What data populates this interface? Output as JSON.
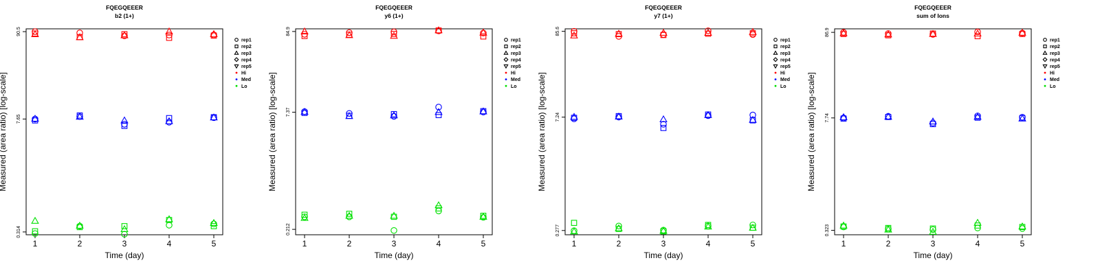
{
  "colors": {
    "Hi": "#ff0000",
    "Med": "#0000ff",
    "Lo": "#00e000"
  },
  "legend": {
    "placement": "right",
    "entries": [
      {
        "label": "rep1",
        "symbol": "circle"
      },
      {
        "label": "rep2",
        "symbol": "square"
      },
      {
        "label": "rep3",
        "symbol": "triangle-up"
      },
      {
        "label": "rep4",
        "symbol": "diamond"
      },
      {
        "label": "rep5",
        "symbol": "triangle-down"
      },
      {
        "label": "Hi",
        "symbol": "dot",
        "color": "#ff0000"
      },
      {
        "label": "Med",
        "symbol": "dot",
        "color": "#0000ff"
      },
      {
        "label": "Lo",
        "symbol": "dot",
        "color": "#00e000"
      }
    ]
  },
  "chart_data": [
    {
      "type": "scatter",
      "title": "FQEGQEEER",
      "subtitle": "b2 (1+)",
      "xlabel": "Time (day)",
      "ylabel": "Measured (area ratio) [log-scale]",
      "yscale": "log",
      "xlim": [
        0.8,
        5.2
      ],
      "ylim": [
        0.29,
        98
      ],
      "x_ticks": [
        1,
        2,
        3,
        4,
        5
      ],
      "y_ticks": [
        0.314,
        7.65,
        90.5
      ],
      "y_tick_labels": [
        "0.314",
        "7.65",
        "90.5"
      ],
      "points": {
        "Hi": [
          [
            1,
            90.5,
            "circle"
          ],
          [
            1,
            85.8,
            "square"
          ],
          [
            1,
            84.2,
            "triangle-up"
          ],
          [
            2,
            87.4,
            "circle"
          ],
          [
            2,
            77.6,
            "square"
          ],
          [
            2,
            77.3,
            "triangle-up"
          ],
          [
            3,
            80.3,
            "circle"
          ],
          [
            3,
            84.2,
            "square"
          ],
          [
            3,
            81.5,
            "triangle-up"
          ],
          [
            4,
            82.2,
            "circle"
          ],
          [
            4,
            76.0,
            "square"
          ],
          [
            4,
            91.0,
            "triangle-up"
          ],
          [
            5,
            82.6,
            "circle"
          ],
          [
            5,
            81.0,
            "square"
          ],
          [
            5,
            84.5,
            "triangle-up"
          ]
        ],
        "Med": [
          [
            1,
            7.65,
            "circle"
          ],
          [
            1,
            7.35,
            "square"
          ],
          [
            1,
            7.72,
            "triangle-up"
          ],
          [
            2,
            8.2,
            "circle"
          ],
          [
            2,
            8.45,
            "square"
          ],
          [
            2,
            8.15,
            "triangle-up"
          ],
          [
            3,
            6.6,
            "circle"
          ],
          [
            3,
            6.3,
            "square"
          ],
          [
            3,
            7.35,
            "triangle-up"
          ],
          [
            4,
            7.0,
            "circle"
          ],
          [
            4,
            7.85,
            "square"
          ],
          [
            4,
            7.2,
            "triangle-up"
          ],
          [
            5,
            7.95,
            "circle"
          ],
          [
            5,
            8.05,
            "square"
          ],
          [
            5,
            8.0,
            "triangle-up"
          ]
        ],
        "Lo": [
          [
            1,
            0.3,
            "circle"
          ],
          [
            1,
            0.32,
            "square"
          ],
          [
            1,
            0.43,
            "triangle-up"
          ],
          [
            2,
            0.37,
            "circle"
          ],
          [
            2,
            0.36,
            "square"
          ],
          [
            2,
            0.375,
            "triangle-up"
          ],
          [
            3,
            0.295,
            "circle"
          ],
          [
            3,
            0.37,
            "square"
          ],
          [
            3,
            0.34,
            "triangle-up"
          ],
          [
            4,
            0.38,
            "circle"
          ],
          [
            4,
            0.44,
            "square"
          ],
          [
            4,
            0.45,
            "triangle-up"
          ],
          [
            5,
            0.395,
            "circle"
          ],
          [
            5,
            0.37,
            "square"
          ],
          [
            5,
            0.405,
            "triangle-up"
          ]
        ]
      }
    },
    {
      "type": "scatter",
      "title": "FQEGQEEER",
      "subtitle": "y6 (1+)",
      "xlabel": "Time (day)",
      "ylabel": "Measured (area ratio) [log-scale]",
      "yscale": "log",
      "xlim": [
        0.8,
        5.2
      ],
      "ylim": [
        0.18,
        92
      ],
      "x_ticks": [
        1,
        2,
        3,
        4,
        5
      ],
      "y_ticks": [
        0.212,
        7.37,
        84.9
      ],
      "y_tick_labels": [
        "0.212",
        "7.37",
        "84.9"
      ],
      "points": {
        "Hi": [
          [
            1,
            78.0,
            "circle"
          ],
          [
            1,
            74.0,
            "square"
          ],
          [
            1,
            84.9,
            "triangle-up"
          ],
          [
            2,
            82.0,
            "circle"
          ],
          [
            2,
            77.0,
            "square"
          ],
          [
            2,
            76.0,
            "triangle-up"
          ],
          [
            3,
            84.0,
            "circle"
          ],
          [
            3,
            79.0,
            "square"
          ],
          [
            3,
            74.5,
            "triangle-up"
          ],
          [
            4,
            86.5,
            "circle"
          ],
          [
            4,
            87.5,
            "square"
          ],
          [
            4,
            88.0,
            "triangle-up"
          ],
          [
            5,
            81.0,
            "circle"
          ],
          [
            5,
            73.0,
            "square"
          ],
          [
            5,
            82.0,
            "triangle-up"
          ]
        ],
        "Med": [
          [
            1,
            7.5,
            "circle"
          ],
          [
            1,
            7.2,
            "square"
          ],
          [
            1,
            7.45,
            "triangle-up"
          ],
          [
            2,
            7.1,
            "circle"
          ],
          [
            2,
            6.6,
            "square"
          ],
          [
            2,
            6.55,
            "triangle-up"
          ],
          [
            3,
            6.5,
            "circle"
          ],
          [
            3,
            6.95,
            "square"
          ],
          [
            3,
            6.7,
            "triangle-up"
          ],
          [
            4,
            8.6,
            "circle"
          ],
          [
            4,
            6.75,
            "square"
          ],
          [
            4,
            7.4,
            "triangle-up"
          ],
          [
            5,
            7.4,
            "circle"
          ],
          [
            5,
            7.6,
            "square"
          ],
          [
            5,
            7.55,
            "triangle-up"
          ]
        ],
        "Lo": [
          [
            1,
            0.31,
            "circle"
          ],
          [
            1,
            0.33,
            "square"
          ],
          [
            1,
            0.3,
            "triangle-up"
          ],
          [
            2,
            0.31,
            "circle"
          ],
          [
            2,
            0.34,
            "square"
          ],
          [
            2,
            0.32,
            "triangle-up"
          ],
          [
            3,
            0.205,
            "circle"
          ],
          [
            3,
            0.31,
            "square"
          ],
          [
            3,
            0.32,
            "triangle-up"
          ],
          [
            4,
            0.37,
            "circle"
          ],
          [
            4,
            0.4,
            "square"
          ],
          [
            4,
            0.44,
            "triangle-up"
          ],
          [
            5,
            0.305,
            "circle"
          ],
          [
            5,
            0.32,
            "square"
          ],
          [
            5,
            0.31,
            "triangle-up"
          ]
        ]
      }
    },
    {
      "type": "scatter",
      "title": "FQEGQEEER",
      "subtitle": "y7 (1+)",
      "xlabel": "Time (day)",
      "ylabel": "Measured (area ratio) [log-scale]",
      "yscale": "log",
      "xlim": [
        0.8,
        5.2
      ],
      "ylim": [
        0.245,
        92
      ],
      "x_ticks": [
        1,
        2,
        3,
        4,
        5
      ],
      "y_ticks": [
        0.277,
        7.24,
        85.6
      ],
      "y_tick_labels": [
        "0.277",
        "7.24",
        "85.6"
      ],
      "points": {
        "Hi": [
          [
            1,
            85.6,
            "circle"
          ],
          [
            1,
            81.0,
            "square"
          ],
          [
            1,
            76.0,
            "triangle-up"
          ],
          [
            2,
            74.0,
            "circle"
          ],
          [
            2,
            79.0,
            "square"
          ],
          [
            2,
            80.0,
            "triangle-up"
          ],
          [
            3,
            78.0,
            "circle"
          ],
          [
            3,
            77.0,
            "square"
          ],
          [
            3,
            82.0,
            "triangle-up"
          ],
          [
            4,
            87.0,
            "circle"
          ],
          [
            4,
            80.0,
            "square"
          ],
          [
            4,
            82.0,
            "triangle-up"
          ],
          [
            5,
            78.0,
            "circle"
          ],
          [
            5,
            81.0,
            "square"
          ],
          [
            5,
            84.0,
            "triangle-up"
          ]
        ],
        "Med": [
          [
            1,
            6.9,
            "circle"
          ],
          [
            1,
            7.1,
            "square"
          ],
          [
            1,
            7.3,
            "triangle-up"
          ],
          [
            2,
            7.25,
            "circle"
          ],
          [
            2,
            7.45,
            "square"
          ],
          [
            2,
            7.35,
            "triangle-up"
          ],
          [
            3,
            5.9,
            "circle"
          ],
          [
            3,
            5.3,
            "square"
          ],
          [
            3,
            6.8,
            "triangle-up"
          ],
          [
            4,
            7.55,
            "circle"
          ],
          [
            4,
            7.8,
            "square"
          ],
          [
            4,
            7.7,
            "triangle-up"
          ],
          [
            5,
            7.7,
            "circle"
          ],
          [
            5,
            6.6,
            "square"
          ],
          [
            5,
            6.7,
            "triangle-up"
          ]
        ],
        "Lo": [
          [
            1,
            0.275,
            "circle"
          ],
          [
            1,
            0.345,
            "square"
          ],
          [
            1,
            0.27,
            "triangle-up"
          ],
          [
            2,
            0.315,
            "circle"
          ],
          [
            2,
            0.29,
            "square"
          ],
          [
            2,
            0.295,
            "triangle-up"
          ],
          [
            3,
            0.28,
            "circle"
          ],
          [
            3,
            0.27,
            "square"
          ],
          [
            3,
            0.275,
            "triangle-up"
          ],
          [
            4,
            0.315,
            "circle"
          ],
          [
            4,
            0.325,
            "square"
          ],
          [
            4,
            0.31,
            "triangle-up"
          ],
          [
            5,
            0.325,
            "circle"
          ],
          [
            5,
            0.3,
            "square"
          ],
          [
            5,
            0.3,
            "triangle-up"
          ]
        ]
      }
    },
    {
      "type": "scatter",
      "title": "FQEGQEEER",
      "subtitle": "sum of Ions",
      "xlabel": "Time (day)",
      "ylabel": "Measured (area ratio) [log-scale]",
      "yscale": "log",
      "xlim": [
        0.8,
        5.2
      ],
      "ylim": [
        0.285,
        96
      ],
      "x_ticks": [
        1,
        2,
        3,
        4,
        5
      ],
      "y_ticks": [
        0.323,
        7.74,
        86.9
      ],
      "y_tick_labels": [
        "0.323",
        "7.74",
        "86.9"
      ],
      "points": {
        "Hi": [
          [
            1,
            86.9,
            "circle"
          ],
          [
            1,
            83.0,
            "square"
          ],
          [
            1,
            85.0,
            "triangle-up"
          ],
          [
            2,
            84.0,
            "circle"
          ],
          [
            2,
            80.0,
            "square"
          ],
          [
            2,
            82.0,
            "triangle-up"
          ],
          [
            3,
            82.0,
            "circle"
          ],
          [
            3,
            84.0,
            "square"
          ],
          [
            3,
            83.0,
            "triangle-up"
          ],
          [
            4,
            88.0,
            "circle"
          ],
          [
            4,
            78.0,
            "square"
          ],
          [
            4,
            84.0,
            "triangle-up"
          ],
          [
            5,
            85.0,
            "circle"
          ],
          [
            5,
            83.0,
            "square"
          ],
          [
            5,
            86.0,
            "triangle-up"
          ]
        ],
        "Med": [
          [
            1,
            7.74,
            "circle"
          ],
          [
            1,
            7.6,
            "square"
          ],
          [
            1,
            7.9,
            "triangle-up"
          ],
          [
            2,
            8.1,
            "circle"
          ],
          [
            2,
            7.95,
            "square"
          ],
          [
            2,
            8.0,
            "triangle-up"
          ],
          [
            3,
            6.7,
            "circle"
          ],
          [
            3,
            6.5,
            "square"
          ],
          [
            3,
            7.0,
            "triangle-up"
          ],
          [
            4,
            8.2,
            "circle"
          ],
          [
            4,
            7.8,
            "square"
          ],
          [
            4,
            8.0,
            "triangle-up"
          ],
          [
            5,
            7.9,
            "circle"
          ],
          [
            5,
            7.7,
            "square"
          ],
          [
            5,
            7.6,
            "triangle-up"
          ]
        ],
        "Lo": [
          [
            1,
            0.355,
            "circle"
          ],
          [
            1,
            0.36,
            "square"
          ],
          [
            1,
            0.37,
            "triangle-up"
          ],
          [
            2,
            0.335,
            "circle"
          ],
          [
            2,
            0.345,
            "square"
          ],
          [
            2,
            0.33,
            "triangle-up"
          ],
          [
            3,
            0.33,
            "circle"
          ],
          [
            3,
            0.34,
            "square"
          ],
          [
            3,
            0.31,
            "triangle-up"
          ],
          [
            4,
            0.345,
            "circle"
          ],
          [
            4,
            0.37,
            "square"
          ],
          [
            4,
            0.4,
            "triangle-up"
          ],
          [
            5,
            0.34,
            "circle"
          ],
          [
            5,
            0.355,
            "square"
          ],
          [
            5,
            0.36,
            "triangle-up"
          ]
        ]
      }
    }
  ]
}
